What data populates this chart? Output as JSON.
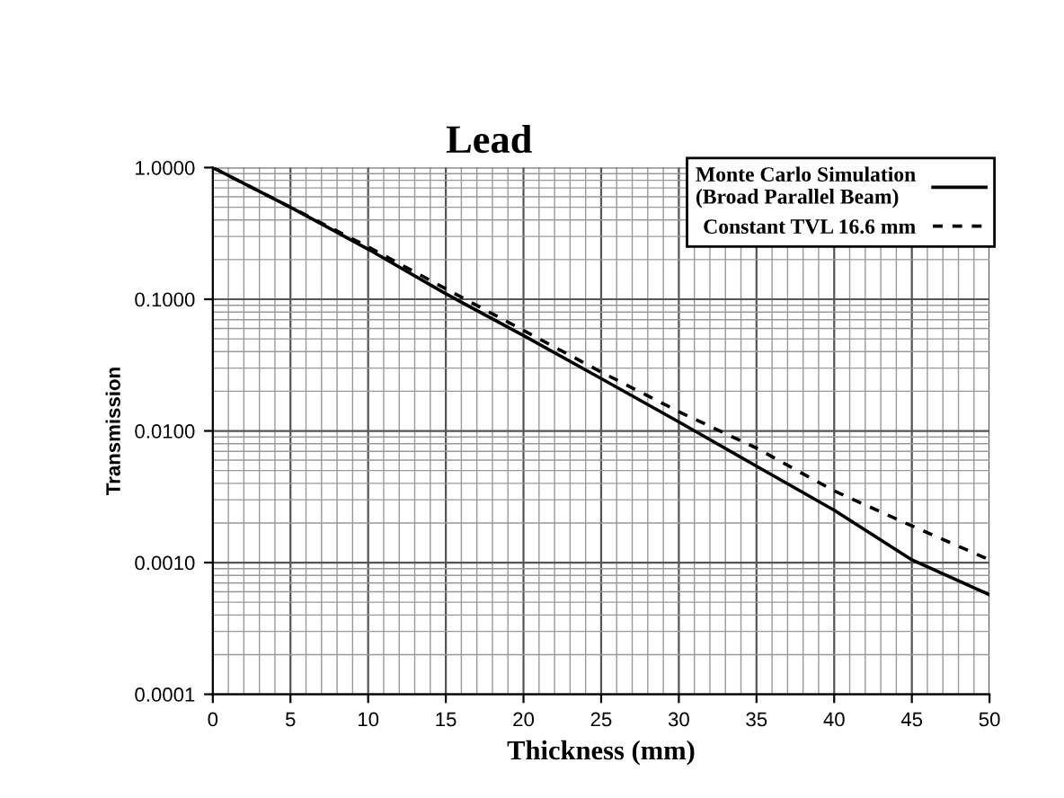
{
  "chart_data": {
    "type": "line",
    "title": "Lead",
    "xlabel": "Thickness (mm)",
    "ylabel": "Transmission",
    "x": [
      0,
      5,
      10,
      15,
      20,
      25,
      30,
      35,
      40,
      45,
      50
    ],
    "series": [
      {
        "name": "Monte Carlo Simulation\n(Broad Parallel Beam)",
        "color": "#000000",
        "line_style": "solid",
        "values": [
          1.0,
          0.5,
          0.24,
          0.11,
          0.053,
          0.025,
          0.0117,
          0.0054,
          0.0025,
          0.00105,
          0.00057
        ]
      },
      {
        "name": "Constant TVL 16.6 mm",
        "color": "#000000",
        "line_style": "dashed",
        "values": [
          1.0,
          0.5,
          0.25,
          0.12,
          0.058,
          0.028,
          0.014,
          0.0074,
          0.0035,
          0.0019,
          0.00105
        ]
      }
    ],
    "log": "y",
    "xlim": [
      0,
      50
    ],
    "xticks": [
      0,
      5,
      10,
      15,
      20,
      25,
      30,
      35,
      40,
      45,
      50
    ],
    "ylim": [
      0.0001,
      1
    ],
    "yticks": [
      {
        "value": 0.0001,
        "label": "0.0001"
      },
      {
        "value": 0.001,
        "label": "0.0010"
      },
      {
        "value": 0.01,
        "label": "0.0100"
      },
      {
        "value": 0.1,
        "label": "0.1000"
      },
      {
        "value": 1,
        "label": "1.0000"
      }
    ],
    "grid": true,
    "legend": "top right",
    "marker": "none"
  }
}
